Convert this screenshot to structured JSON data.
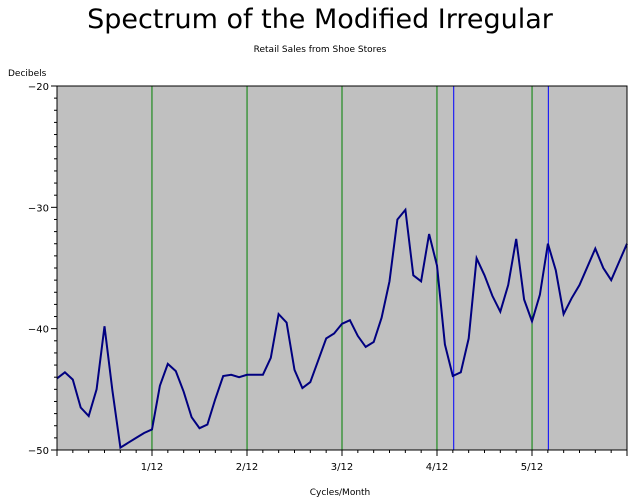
{
  "chart_data": {
    "type": "line",
    "title": "Spectrum of the Modified Irregular",
    "subtitle": "Retail Sales from Shoe Stores",
    "ylabel": "Decibels",
    "xlabel": "Cycles/Month",
    "ylim": [
      -50,
      -20
    ],
    "xlim": [
      0,
      0.5
    ],
    "y_ticks": [
      -20,
      -30,
      -40,
      -50
    ],
    "y_tick_labels": [
      "−20",
      "−30",
      "−40",
      "−50"
    ],
    "x_ticks": [
      0.0833,
      0.1667,
      0.25,
      0.3333,
      0.4167
    ],
    "x_tick_labels": [
      "1/12",
      "2/12",
      "3/12",
      "4/12",
      "5/12"
    ],
    "background_color": "#c0c0c0",
    "line_color": "#000080",
    "green_lines": [
      0.0833,
      0.1667,
      0.25,
      0.3333,
      0.4167
    ],
    "green_line_color": "#008000",
    "blue_lines": [
      0.348,
      0.431
    ],
    "blue_line_color": "#0000ff",
    "series": [
      {
        "x": [
          0.0,
          0.0069,
          0.0139,
          0.0208,
          0.0278,
          0.0347,
          0.0417,
          0.0486,
          0.0556,
          0.0625,
          0.0694,
          0.0764,
          0.0833,
          0.0903,
          0.0972,
          0.1042,
          0.1111,
          0.1181,
          0.125,
          0.1319,
          0.1389,
          0.1458,
          0.1528,
          0.1597,
          0.1667,
          0.1736,
          0.1806,
          0.1875,
          0.1944,
          0.2014,
          0.2083,
          0.2153,
          0.2222,
          0.2292,
          0.2361,
          0.2431,
          0.25,
          0.2569,
          0.2639,
          0.2708,
          0.2778,
          0.2847,
          0.2917,
          0.2986,
          0.3056,
          0.3125,
          0.3194,
          0.3264,
          0.3333,
          0.3403,
          0.3472,
          0.3542,
          0.3611,
          0.3681,
          0.375,
          0.3819,
          0.3889,
          0.3958,
          0.4028,
          0.4097,
          0.4167,
          0.4236,
          0.4306,
          0.4375,
          0.4444,
          0.4514,
          0.4583,
          0.4653,
          0.4722,
          0.4792,
          0.4861,
          0.4931,
          0.5
        ],
        "y": [
          -44.1,
          -43.6,
          -44.2,
          -46.5,
          -47.2,
          -45.0,
          -39.8,
          -45.1,
          -49.8,
          -49.4,
          -49.0,
          -48.6,
          -48.3,
          -44.7,
          -42.9,
          -43.5,
          -45.2,
          -47.3,
          -48.2,
          -47.9,
          -45.8,
          -43.9,
          -43.8,
          -44.0,
          -43.8,
          -43.8,
          -43.8,
          -42.4,
          -38.8,
          -39.5,
          -43.4,
          -44.9,
          -44.4,
          -42.6,
          -40.8,
          -40.4,
          -39.6,
          -39.3,
          -40.6,
          -41.5,
          -41.1,
          -39.1,
          -36.1,
          -31.0,
          -30.2,
          -35.6,
          -36.1,
          -32.2,
          -34.8,
          -41.3,
          -43.9,
          -43.6,
          -40.8,
          -34.2,
          -35.6,
          -37.3,
          -38.6,
          -36.4,
          -32.6,
          -37.6,
          -39.4,
          -37.2,
          -33.0,
          -35.2,
          -38.8,
          -37.5,
          -36.4,
          -34.9,
          -33.4,
          -35.0,
          -36.0,
          -34.5,
          -33.0
        ]
      }
    ]
  }
}
